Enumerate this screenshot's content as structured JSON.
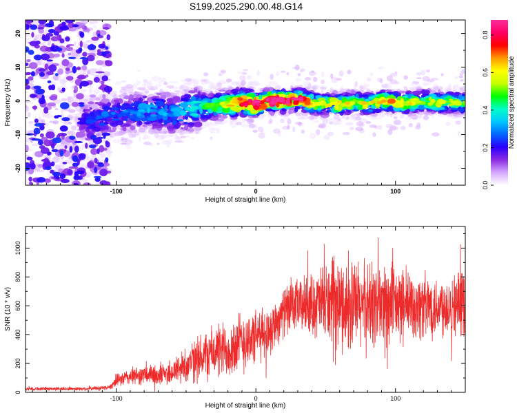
{
  "title": "S199.2025.290.00.48.G14",
  "chart_data": [
    {
      "type": "heatmap",
      "xlabel": "Height of straight line (km)",
      "ylabel": "Frequency (Hz)",
      "xlim": [
        -165,
        150
      ],
      "ylim": [
        -25,
        24
      ],
      "xticks": [
        -100,
        0,
        100
      ],
      "xtick_labels": [
        "-100",
        "0",
        "100"
      ],
      "yticks": [
        -20,
        -10,
        0,
        10,
        20
      ],
      "ytick_labels": [
        "-20",
        "-10",
        "0",
        "10",
        "20"
      ],
      "colorbar": {
        "label": "Normalized spectral amplitude",
        "range": [
          0,
          0.88
        ],
        "ticks": [
          0,
          0.2,
          0.4,
          0.6,
          0.8
        ],
        "tick_labels": [
          "0.0",
          "0.2",
          "0.4",
          "0.6",
          "0.8"
        ],
        "colormap": [
          "#ffffff",
          "#d6a8ff",
          "#8a2be2",
          "#2a00ff",
          "#0066ff",
          "#00c8ff",
          "#00ffc8",
          "#00ff00",
          "#c8ff00",
          "#ffff00",
          "#ff9900",
          "#ff0000",
          "#ff0066",
          "#ff2d9b"
        ]
      },
      "ridge": {
        "x": [
          -160,
          -140,
          -120,
          -110,
          -100,
          -90,
          -80,
          -70,
          -60,
          -50,
          -40,
          -30,
          -20,
          -10,
          0,
          10,
          20,
          30,
          40,
          50,
          60,
          70,
          80,
          90,
          100,
          110,
          120,
          130,
          140,
          150
        ],
        "freq": [
          -1,
          -3,
          -6,
          -5,
          -4,
          -3.5,
          -3,
          -3,
          -4,
          -3,
          -2,
          -1.5,
          -1,
          -0.5,
          -1,
          0,
          0,
          0.5,
          -0.5,
          -1,
          -1,
          -0.5,
          -1,
          0,
          -0.5,
          -0.5,
          0,
          -0.5,
          -0.5,
          -0.5
        ],
        "peak_amplitude": [
          0.1,
          0.15,
          0.2,
          0.25,
          0.25,
          0.25,
          0.3,
          0.3,
          0.3,
          0.35,
          0.4,
          0.45,
          0.55,
          0.7,
          0.8,
          0.85,
          0.85,
          0.8,
          0.6,
          0.55,
          0.6,
          0.55,
          0.55,
          0.6,
          0.6,
          0.55,
          0.5,
          0.5,
          0.5,
          0.45
        ]
      }
    },
    {
      "type": "line",
      "xlabel": "Height of straight line (km)",
      "ylabel": "SNR (10 * v/v)",
      "xlim": [
        -165,
        150
      ],
      "ylim": [
        0,
        1150
      ],
      "xticks": [
        -100,
        0,
        100
      ],
      "xtick_labels": [
        "-100",
        "0",
        "100"
      ],
      "yticks": [
        0,
        200,
        400,
        600,
        800,
        1000
      ],
      "ytick_labels": [
        "0",
        "200",
        "400",
        "600",
        "800",
        "1000"
      ],
      "color": "#ee2b2b",
      "envelope": {
        "x": [
          -165,
          -120,
          -105,
          -100,
          -90,
          -80,
          -70,
          -60,
          -50,
          -40,
          -30,
          -20,
          -10,
          0,
          10,
          20,
          30,
          40,
          50,
          60,
          70,
          80,
          90,
          100,
          110,
          120,
          130,
          140,
          150
        ],
        "mean": [
          25,
          25,
          35,
          80,
          110,
          120,
          120,
          140,
          190,
          240,
          280,
          300,
          350,
          380,
          430,
          560,
          600,
          610,
          620,
          610,
          600,
          600,
          610,
          600,
          600,
          600,
          600,
          610,
          620
        ],
        "spread": [
          15,
          15,
          20,
          50,
          70,
          80,
          90,
          110,
          150,
          190,
          220,
          240,
          260,
          220,
          200,
          200,
          220,
          250,
          330,
          360,
          380,
          370,
          380,
          330,
          300,
          280,
          260,
          260,
          260
        ]
      }
    }
  ]
}
